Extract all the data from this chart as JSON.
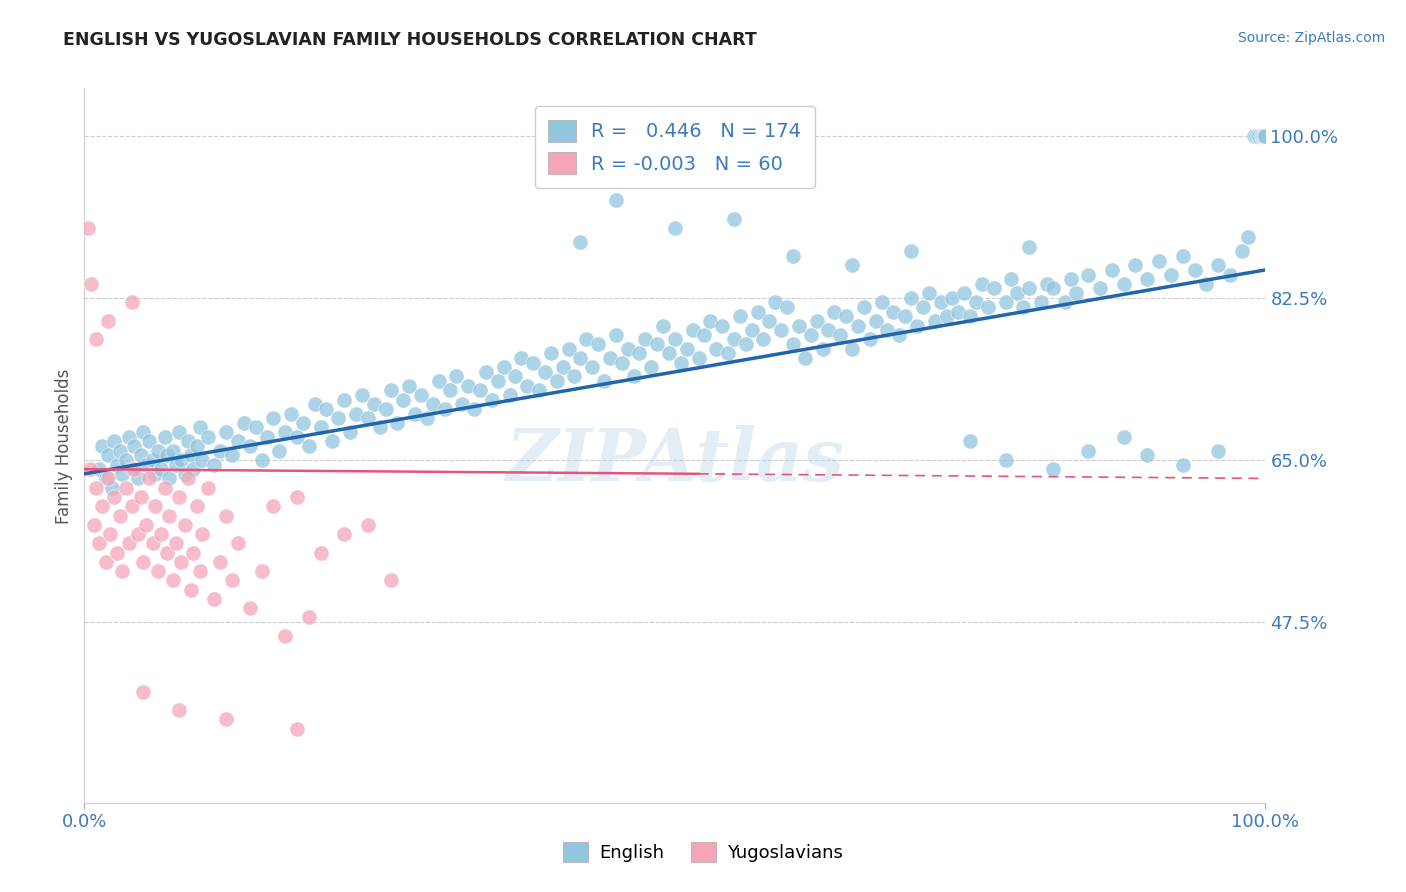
{
  "title": "ENGLISH VS YUGOSLAVIAN FAMILY HOUSEHOLDS CORRELATION CHART",
  "source_text": "Source: ZipAtlas.com",
  "ylabel": "Family Households",
  "x_min": 0.0,
  "x_max": 100.0,
  "y_min": 28.0,
  "y_max": 105.0,
  "y_ticks": [
    47.5,
    65.0,
    82.5,
    100.0
  ],
  "x_ticks": [
    0.0,
    100.0
  ],
  "english_color": "#92c5de",
  "yugoslavian_color": "#f4a6b8",
  "english_R": 0.446,
  "english_N": 174,
  "yugoslavian_R": -0.003,
  "yugoslavian_N": 60,
  "english_line_color": "#2166ac",
  "yugoslavian_line_color": "#e8537a",
  "legend_R_color": "#3a7bbf",
  "english_scatter": [
    [
      1.2,
      64.0
    ],
    [
      1.5,
      66.5
    ],
    [
      1.8,
      63.0
    ],
    [
      2.0,
      65.5
    ],
    [
      2.3,
      62.0
    ],
    [
      2.5,
      67.0
    ],
    [
      2.8,
      64.5
    ],
    [
      3.0,
      66.0
    ],
    [
      3.2,
      63.5
    ],
    [
      3.5,
      65.0
    ],
    [
      3.8,
      67.5
    ],
    [
      4.0,
      64.0
    ],
    [
      4.2,
      66.5
    ],
    [
      4.5,
      63.0
    ],
    [
      4.8,
      65.5
    ],
    [
      5.0,
      68.0
    ],
    [
      5.2,
      64.5
    ],
    [
      5.5,
      67.0
    ],
    [
      5.8,
      65.0
    ],
    [
      6.0,
      63.5
    ],
    [
      6.2,
      66.0
    ],
    [
      6.5,
      64.0
    ],
    [
      6.8,
      67.5
    ],
    [
      7.0,
      65.5
    ],
    [
      7.2,
      63.0
    ],
    [
      7.5,
      66.0
    ],
    [
      7.8,
      64.5
    ],
    [
      8.0,
      68.0
    ],
    [
      8.2,
      65.0
    ],
    [
      8.5,
      63.5
    ],
    [
      8.8,
      67.0
    ],
    [
      9.0,
      65.5
    ],
    [
      9.2,
      64.0
    ],
    [
      9.5,
      66.5
    ],
    [
      9.8,
      68.5
    ],
    [
      10.0,
      65.0
    ],
    [
      10.5,
      67.5
    ],
    [
      11.0,
      64.5
    ],
    [
      11.5,
      66.0
    ],
    [
      12.0,
      68.0
    ],
    [
      12.5,
      65.5
    ],
    [
      13.0,
      67.0
    ],
    [
      13.5,
      69.0
    ],
    [
      14.0,
      66.5
    ],
    [
      14.5,
      68.5
    ],
    [
      15.0,
      65.0
    ],
    [
      15.5,
      67.5
    ],
    [
      16.0,
      69.5
    ],
    [
      16.5,
      66.0
    ],
    [
      17.0,
      68.0
    ],
    [
      17.5,
      70.0
    ],
    [
      18.0,
      67.5
    ],
    [
      18.5,
      69.0
    ],
    [
      19.0,
      66.5
    ],
    [
      19.5,
      71.0
    ],
    [
      20.0,
      68.5
    ],
    [
      20.5,
      70.5
    ],
    [
      21.0,
      67.0
    ],
    [
      21.5,
      69.5
    ],
    [
      22.0,
      71.5
    ],
    [
      22.5,
      68.0
    ],
    [
      23.0,
      70.0
    ],
    [
      23.5,
      72.0
    ],
    [
      24.0,
      69.5
    ],
    [
      24.5,
      71.0
    ],
    [
      25.0,
      68.5
    ],
    [
      25.5,
      70.5
    ],
    [
      26.0,
      72.5
    ],
    [
      26.5,
      69.0
    ],
    [
      27.0,
      71.5
    ],
    [
      27.5,
      73.0
    ],
    [
      28.0,
      70.0
    ],
    [
      28.5,
      72.0
    ],
    [
      29.0,
      69.5
    ],
    [
      29.5,
      71.0
    ],
    [
      30.0,
      73.5
    ],
    [
      30.5,
      70.5
    ],
    [
      31.0,
      72.5
    ],
    [
      31.5,
      74.0
    ],
    [
      32.0,
      71.0
    ],
    [
      32.5,
      73.0
    ],
    [
      33.0,
      70.5
    ],
    [
      33.5,
      72.5
    ],
    [
      34.0,
      74.5
    ],
    [
      34.5,
      71.5
    ],
    [
      35.0,
      73.5
    ],
    [
      35.5,
      75.0
    ],
    [
      36.0,
      72.0
    ],
    [
      36.5,
      74.0
    ],
    [
      37.0,
      76.0
    ],
    [
      37.5,
      73.0
    ],
    [
      38.0,
      75.5
    ],
    [
      38.5,
      72.5
    ],
    [
      39.0,
      74.5
    ],
    [
      39.5,
      76.5
    ],
    [
      40.0,
      73.5
    ],
    [
      40.5,
      75.0
    ],
    [
      41.0,
      77.0
    ],
    [
      41.5,
      74.0
    ],
    [
      42.0,
      76.0
    ],
    [
      42.5,
      78.0
    ],
    [
      43.0,
      75.0
    ],
    [
      43.5,
      77.5
    ],
    [
      44.0,
      73.5
    ],
    [
      44.5,
      76.0
    ],
    [
      45.0,
      78.5
    ],
    [
      45.5,
      75.5
    ],
    [
      46.0,
      77.0
    ],
    [
      46.5,
      74.0
    ],
    [
      47.0,
      76.5
    ],
    [
      47.5,
      78.0
    ],
    [
      48.0,
      75.0
    ],
    [
      48.5,
      77.5
    ],
    [
      49.0,
      79.5
    ],
    [
      49.5,
      76.5
    ],
    [
      50.0,
      78.0
    ],
    [
      50.5,
      75.5
    ],
    [
      51.0,
      77.0
    ],
    [
      51.5,
      79.0
    ],
    [
      52.0,
      76.0
    ],
    [
      52.5,
      78.5
    ],
    [
      53.0,
      80.0
    ],
    [
      53.5,
      77.0
    ],
    [
      54.0,
      79.5
    ],
    [
      54.5,
      76.5
    ],
    [
      55.0,
      78.0
    ],
    [
      55.5,
      80.5
    ],
    [
      56.0,
      77.5
    ],
    [
      56.5,
      79.0
    ],
    [
      57.0,
      81.0
    ],
    [
      57.5,
      78.0
    ],
    [
      58.0,
      80.0
    ],
    [
      58.5,
      82.0
    ],
    [
      59.0,
      79.0
    ],
    [
      59.5,
      81.5
    ],
    [
      60.0,
      77.5
    ],
    [
      60.5,
      79.5
    ],
    [
      61.0,
      76.0
    ],
    [
      61.5,
      78.5
    ],
    [
      62.0,
      80.0
    ],
    [
      62.5,
      77.0
    ],
    [
      63.0,
      79.0
    ],
    [
      63.5,
      81.0
    ],
    [
      64.0,
      78.5
    ],
    [
      64.5,
      80.5
    ],
    [
      65.0,
      77.0
    ],
    [
      65.5,
      79.5
    ],
    [
      66.0,
      81.5
    ],
    [
      66.5,
      78.0
    ],
    [
      67.0,
      80.0
    ],
    [
      67.5,
      82.0
    ],
    [
      68.0,
      79.0
    ],
    [
      68.5,
      81.0
    ],
    [
      69.0,
      78.5
    ],
    [
      69.5,
      80.5
    ],
    [
      70.0,
      82.5
    ],
    [
      70.5,
      79.5
    ],
    [
      71.0,
      81.5
    ],
    [
      71.5,
      83.0
    ],
    [
      72.0,
      80.0
    ],
    [
      72.5,
      82.0
    ],
    [
      73.0,
      80.5
    ],
    [
      73.5,
      82.5
    ],
    [
      74.0,
      81.0
    ],
    [
      74.5,
      83.0
    ],
    [
      75.0,
      80.5
    ],
    [
      75.5,
      82.0
    ],
    [
      76.0,
      84.0
    ],
    [
      76.5,
      81.5
    ],
    [
      77.0,
      83.5
    ],
    [
      78.0,
      82.0
    ],
    [
      78.5,
      84.5
    ],
    [
      79.0,
      83.0
    ],
    [
      79.5,
      81.5
    ],
    [
      80.0,
      83.5
    ],
    [
      81.0,
      82.0
    ],
    [
      81.5,
      84.0
    ],
    [
      82.0,
      83.5
    ],
    [
      83.0,
      82.0
    ],
    [
      83.5,
      84.5
    ],
    [
      84.0,
      83.0
    ],
    [
      85.0,
      85.0
    ],
    [
      86.0,
      83.5
    ],
    [
      87.0,
      85.5
    ],
    [
      88.0,
      84.0
    ],
    [
      89.0,
      86.0
    ],
    [
      90.0,
      84.5
    ],
    [
      91.0,
      86.5
    ],
    [
      92.0,
      85.0
    ],
    [
      93.0,
      87.0
    ],
    [
      94.0,
      85.5
    ],
    [
      95.0,
      84.0
    ],
    [
      96.0,
      86.0
    ],
    [
      97.0,
      85.0
    ],
    [
      98.0,
      87.5
    ],
    [
      98.5,
      89.0
    ],
    [
      99.0,
      100.0
    ],
    [
      99.2,
      100.0
    ],
    [
      99.4,
      100.0
    ],
    [
      99.5,
      100.0
    ],
    [
      99.6,
      100.0
    ],
    [
      99.7,
      100.0
    ],
    [
      99.8,
      100.0
    ],
    [
      99.9,
      100.0
    ],
    [
      100.0,
      100.0
    ],
    [
      45.0,
      93.0
    ],
    [
      50.0,
      90.0
    ],
    [
      55.0,
      91.0
    ],
    [
      42.0,
      88.5
    ],
    [
      60.0,
      87.0
    ],
    [
      65.0,
      86.0
    ],
    [
      70.0,
      87.5
    ],
    [
      80.0,
      88.0
    ],
    [
      75.0,
      67.0
    ],
    [
      78.0,
      65.0
    ],
    [
      82.0,
      64.0
    ],
    [
      85.0,
      66.0
    ],
    [
      88.0,
      67.5
    ],
    [
      90.0,
      65.5
    ],
    [
      93.0,
      64.5
    ],
    [
      96.0,
      66.0
    ]
  ],
  "yugoslavian_scatter": [
    [
      0.5,
      64.0
    ],
    [
      0.8,
      58.0
    ],
    [
      1.0,
      62.0
    ],
    [
      1.2,
      56.0
    ],
    [
      1.5,
      60.0
    ],
    [
      1.8,
      54.0
    ],
    [
      2.0,
      63.0
    ],
    [
      2.2,
      57.0
    ],
    [
      2.5,
      61.0
    ],
    [
      2.8,
      55.0
    ],
    [
      3.0,
      59.0
    ],
    [
      3.2,
      53.0
    ],
    [
      3.5,
      62.0
    ],
    [
      3.8,
      56.0
    ],
    [
      4.0,
      60.0
    ],
    [
      4.2,
      64.0
    ],
    [
      4.5,
      57.0
    ],
    [
      4.8,
      61.0
    ],
    [
      5.0,
      54.0
    ],
    [
      5.2,
      58.0
    ],
    [
      5.5,
      63.0
    ],
    [
      5.8,
      56.0
    ],
    [
      6.0,
      60.0
    ],
    [
      6.2,
      53.0
    ],
    [
      6.5,
      57.0
    ],
    [
      6.8,
      62.0
    ],
    [
      7.0,
      55.0
    ],
    [
      7.2,
      59.0
    ],
    [
      7.5,
      52.0
    ],
    [
      7.8,
      56.0
    ],
    [
      8.0,
      61.0
    ],
    [
      8.2,
      54.0
    ],
    [
      8.5,
      58.0
    ],
    [
      8.8,
      63.0
    ],
    [
      9.0,
      51.0
    ],
    [
      9.2,
      55.0
    ],
    [
      9.5,
      60.0
    ],
    [
      9.8,
      53.0
    ],
    [
      10.0,
      57.0
    ],
    [
      10.5,
      62.0
    ],
    [
      11.0,
      50.0
    ],
    [
      11.5,
      54.0
    ],
    [
      12.0,
      59.0
    ],
    [
      12.5,
      52.0
    ],
    [
      13.0,
      56.0
    ],
    [
      14.0,
      49.0
    ],
    [
      15.0,
      53.0
    ],
    [
      16.0,
      60.0
    ],
    [
      17.0,
      46.0
    ],
    [
      18.0,
      61.0
    ],
    [
      19.0,
      48.0
    ],
    [
      20.0,
      55.0
    ],
    [
      22.0,
      57.0
    ],
    [
      24.0,
      58.0
    ],
    [
      26.0,
      52.0
    ],
    [
      0.3,
      90.0
    ],
    [
      0.6,
      84.0
    ],
    [
      4.0,
      82.0
    ],
    [
      1.0,
      78.0
    ],
    [
      2.0,
      80.0
    ],
    [
      5.0,
      40.0
    ],
    [
      8.0,
      38.0
    ],
    [
      12.0,
      37.0
    ],
    [
      18.0,
      36.0
    ]
  ]
}
